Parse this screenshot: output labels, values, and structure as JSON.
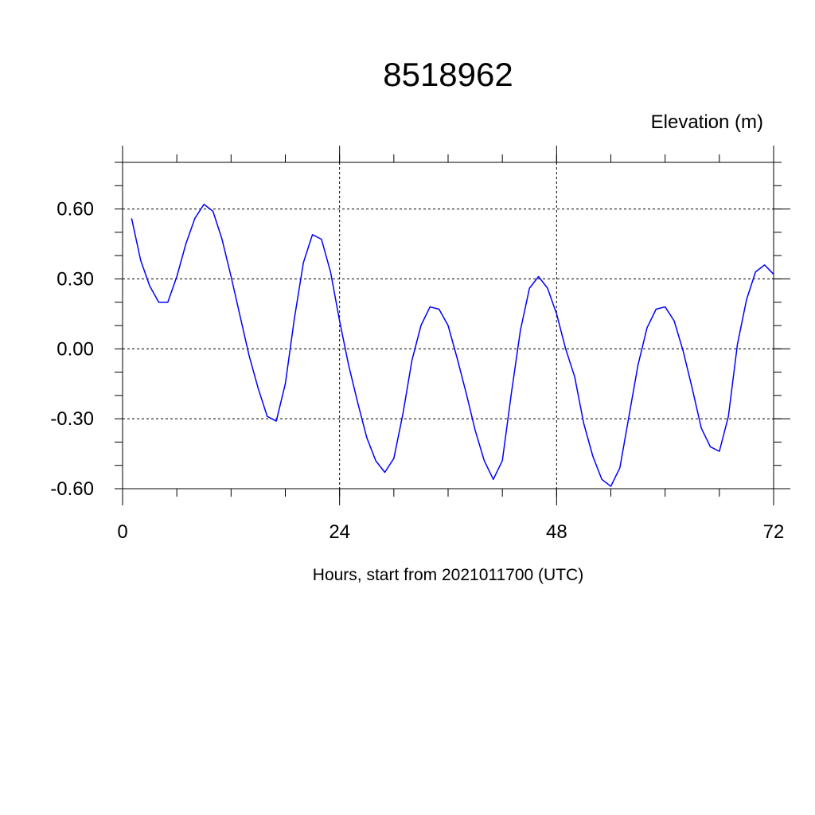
{
  "chart_data": {
    "type": "line",
    "title": "8518962",
    "ylabel": "Elevation (m)",
    "xlabel": "Hours, start from 2021011700 (UTC)",
    "xlim": [
      0,
      72
    ],
    "ylim": [
      -0.6,
      0.8
    ],
    "x_ticks": [
      0,
      24,
      48,
      72
    ],
    "x_tick_labels": [
      "0",
      "24",
      "48",
      "72"
    ],
    "y_ticks": [
      -0.6,
      -0.3,
      0.0,
      0.3,
      0.6
    ],
    "y_tick_labels": [
      "-0.60",
      "-0.30",
      "0.00",
      "0.30",
      "0.60"
    ],
    "grid": true,
    "series_color": "#0000ff",
    "series": [
      {
        "x": [
          1,
          2,
          3,
          4,
          5,
          6,
          7,
          8,
          9,
          10,
          11,
          12,
          13,
          14,
          15,
          16,
          17,
          18,
          19,
          20,
          21,
          22,
          23,
          24,
          25,
          26,
          27,
          28,
          29,
          30,
          31,
          32,
          33,
          34,
          35,
          36,
          37,
          38,
          39,
          40,
          41,
          42,
          43,
          44,
          45,
          46,
          47,
          48,
          49,
          50,
          51,
          52,
          53,
          54,
          55,
          56,
          57,
          58,
          59,
          60,
          61,
          62,
          63,
          64,
          65,
          66,
          67,
          68,
          69,
          70,
          71,
          72
        ],
        "values": [
          0.56,
          0.38,
          0.27,
          0.2,
          0.2,
          0.31,
          0.45,
          0.56,
          0.62,
          0.59,
          0.47,
          0.31,
          0.14,
          -0.03,
          -0.17,
          -0.29,
          -0.31,
          -0.15,
          0.13,
          0.37,
          0.49,
          0.47,
          0.33,
          0.12,
          -0.07,
          -0.23,
          -0.38,
          -0.48,
          -0.53,
          -0.47,
          -0.28,
          -0.05,
          0.1,
          0.18,
          0.17,
          0.1,
          -0.04,
          -0.19,
          -0.35,
          -0.48,
          -0.56,
          -0.48,
          -0.19,
          0.08,
          0.26,
          0.31,
          0.26,
          0.15,
          0.0,
          -0.12,
          -0.32,
          -0.46,
          -0.56,
          -0.59,
          -0.51,
          -0.29,
          -0.07,
          0.09,
          0.17,
          0.18,
          0.12,
          -0.01,
          -0.17,
          -0.34,
          -0.42,
          -0.44,
          -0.29,
          0.02,
          0.21,
          0.33,
          0.36,
          0.32
        ]
      }
    ]
  }
}
